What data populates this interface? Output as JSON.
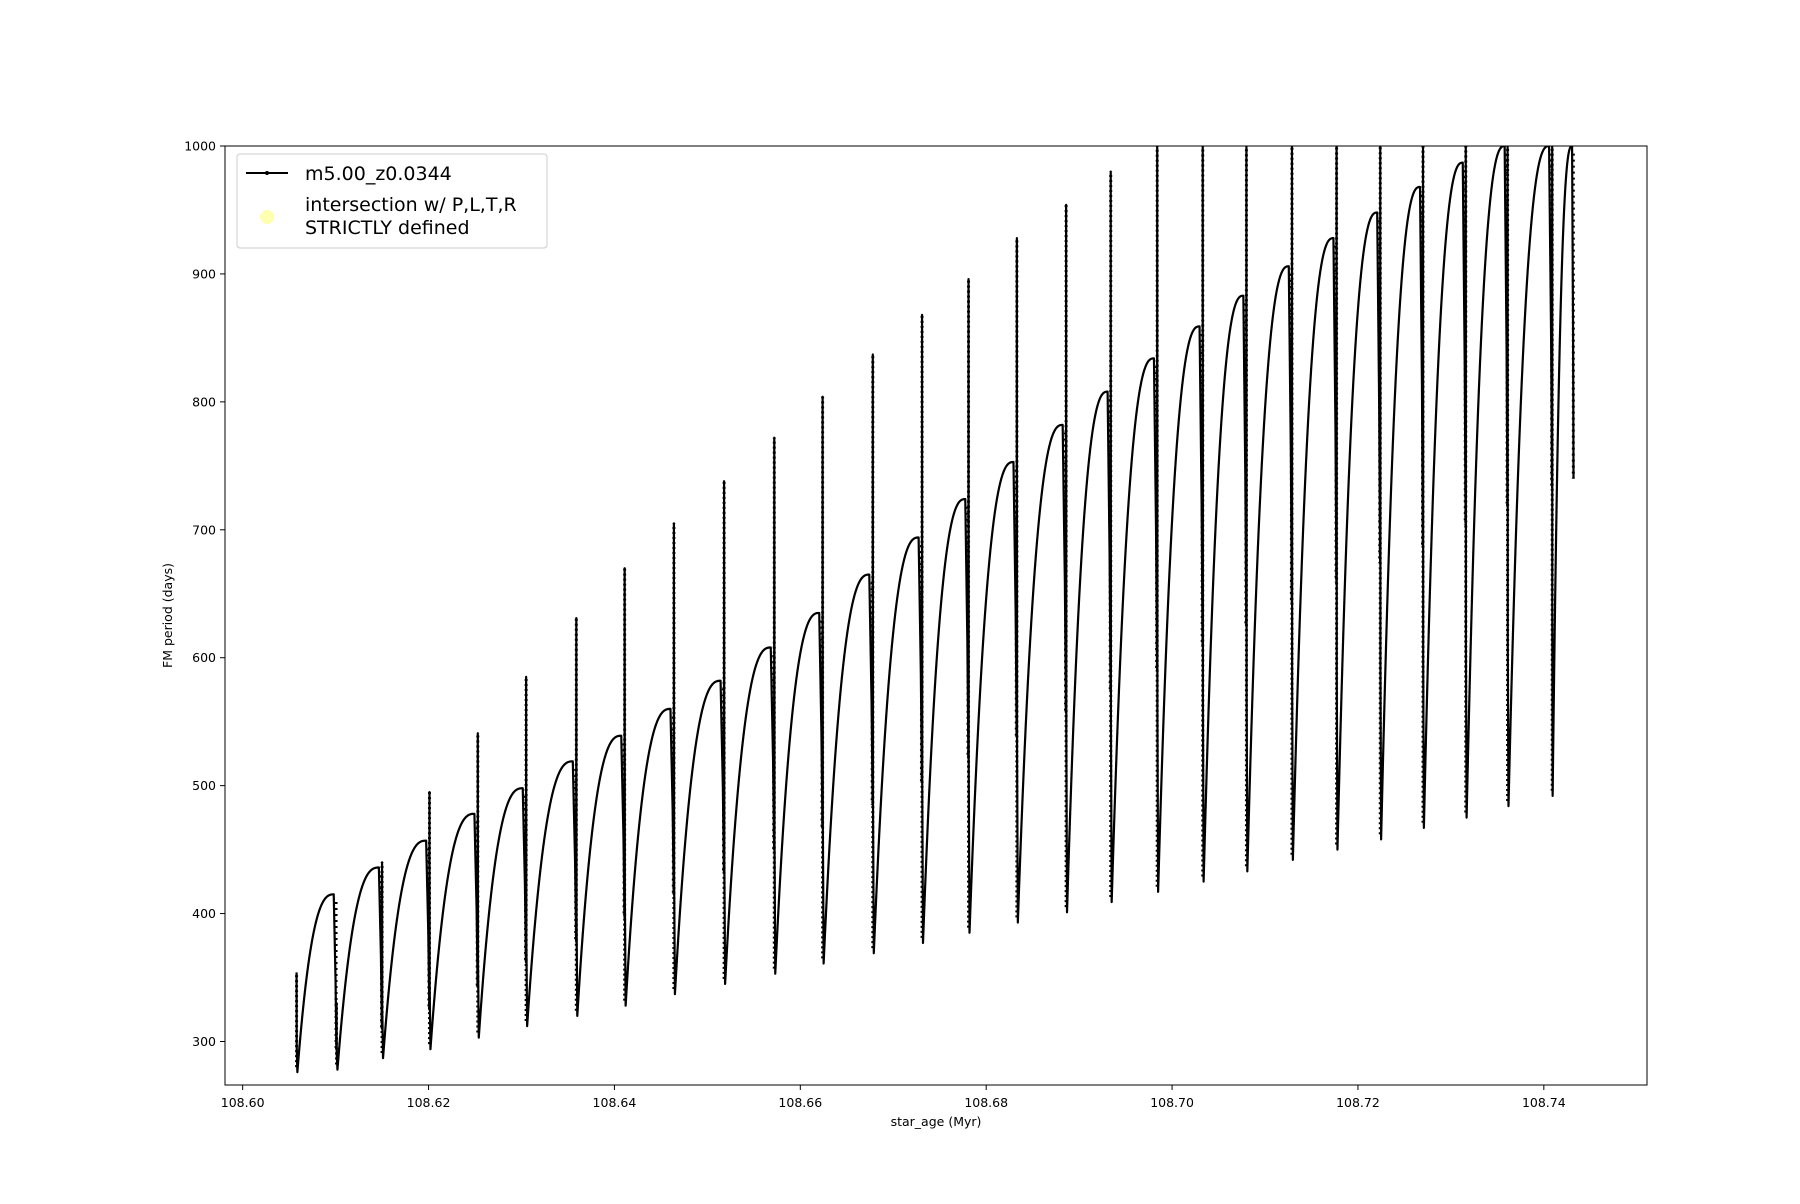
{
  "chart_data": {
    "type": "line",
    "title": "",
    "xlabel": "star_age (Myr)",
    "ylabel": "FM period (days)",
    "xlim": [
      108.5981,
      108.7511
    ],
    "ylim": [
      266,
      1000
    ],
    "x_ticks": [
      "108.60",
      "108.62",
      "108.64",
      "108.66",
      "108.68",
      "108.70",
      "108.72",
      "108.74"
    ],
    "x_tick_values": [
      108.6,
      108.62,
      108.64,
      108.66,
      108.68,
      108.7,
      108.72,
      108.74
    ],
    "y_ticks": [
      "300",
      "400",
      "500",
      "600",
      "700",
      "800",
      "900",
      "1000"
    ],
    "y_tick_values": [
      300,
      400,
      500,
      600,
      700,
      800,
      900,
      1000
    ],
    "grid": false,
    "legend_placement": "top-left",
    "legend": [
      {
        "label": "m5.00_z0.0344",
        "marker": "line-dot",
        "color": "#000000"
      },
      {
        "label_lines": [
          "intersection w/ P,L,T,R",
          "STRICTLY defined"
        ],
        "marker": "circle",
        "color": "#ffffb0"
      }
    ],
    "series": [
      {
        "name": "m5.00_z0.0344",
        "color": "#000000",
        "cycles": [
          {
            "start": 108.6058,
            "end": 108.6101,
            "min": 276,
            "peak": 415,
            "spike": 354,
            "drop": 295
          },
          {
            "start": 108.6101,
            "end": 108.615,
            "min": 278,
            "peak": 436,
            "spike": 330,
            "drop": 310
          },
          {
            "start": 108.615,
            "end": 108.6201,
            "min": 287,
            "peak": 457,
            "spike": 440,
            "drop": 325
          },
          {
            "start": 108.6201,
            "end": 108.6253,
            "min": 294,
            "peak": 478,
            "spike": 495,
            "drop": 343
          },
          {
            "start": 108.6253,
            "end": 108.6305,
            "min": 303,
            "peak": 498,
            "spike": 541,
            "drop": 362
          },
          {
            "start": 108.6305,
            "end": 108.6359,
            "min": 312,
            "peak": 519,
            "spike": 585,
            "drop": 378
          },
          {
            "start": 108.6359,
            "end": 108.6411,
            "min": 320,
            "peak": 539,
            "spike": 631,
            "drop": 397
          },
          {
            "start": 108.6411,
            "end": 108.6464,
            "min": 328,
            "peak": 560,
            "spike": 670,
            "drop": 415
          },
          {
            "start": 108.6464,
            "end": 108.6518,
            "min": 337,
            "peak": 582,
            "spike": 705,
            "drop": 432
          },
          {
            "start": 108.6518,
            "end": 108.6572,
            "min": 345,
            "peak": 608,
            "spike": 738,
            "drop": 450
          },
          {
            "start": 108.6572,
            "end": 108.6624,
            "min": 353,
            "peak": 635,
            "spike": 772,
            "drop": 467
          },
          {
            "start": 108.6624,
            "end": 108.6678,
            "min": 361,
            "peak": 665,
            "spike": 804,
            "drop": 485
          },
          {
            "start": 108.6678,
            "end": 108.6731,
            "min": 369,
            "peak": 694,
            "spike": 837,
            "drop": 503
          },
          {
            "start": 108.6731,
            "end": 108.6781,
            "min": 377,
            "peak": 724,
            "spike": 868,
            "drop": 521
          },
          {
            "start": 108.6781,
            "end": 108.6833,
            "min": 385,
            "peak": 753,
            "spike": 896,
            "drop": 539
          },
          {
            "start": 108.6833,
            "end": 108.6886,
            "min": 393,
            "peak": 782,
            "spike": 928,
            "drop": 557
          },
          {
            "start": 108.6886,
            "end": 108.6934,
            "min": 401,
            "peak": 808,
            "spike": 954,
            "drop": 574
          },
          {
            "start": 108.6934,
            "end": 108.6984,
            "min": 409,
            "peak": 834,
            "spike": 980,
            "drop": 591
          },
          {
            "start": 108.6984,
            "end": 108.7033,
            "min": 417,
            "peak": 859,
            "spike": 1000,
            "drop": 609
          },
          {
            "start": 108.7033,
            "end": 108.708,
            "min": 425,
            "peak": 883,
            "spike": 1000,
            "drop": 626
          },
          {
            "start": 108.708,
            "end": 108.7129,
            "min": 433,
            "peak": 906,
            "spike": 1000,
            "drop": 642
          },
          {
            "start": 108.7129,
            "end": 108.7177,
            "min": 442,
            "peak": 928,
            "spike": 1000,
            "drop": 659
          },
          {
            "start": 108.7177,
            "end": 108.7224,
            "min": 450,
            "peak": 948,
            "spike": 1000,
            "drop": 674
          },
          {
            "start": 108.7224,
            "end": 108.727,
            "min": 458,
            "peak": 968,
            "spike": 1000,
            "drop": 688
          },
          {
            "start": 108.727,
            "end": 108.7316,
            "min": 467,
            "peak": 987,
            "spike": 1000,
            "drop": 704
          },
          {
            "start": 108.7316,
            "end": 108.7361,
            "min": 475,
            "peak": 1000,
            "spike": 1000,
            "drop": 718
          },
          {
            "start": 108.7361,
            "end": 108.7409,
            "min": 484,
            "peak": 1000,
            "spike": 1000,
            "drop": 733
          },
          {
            "start": 108.7409,
            "end": 108.7432,
            "min": 492,
            "peak": 1000,
            "spike": 1000,
            "drop": 740
          }
        ]
      }
    ]
  }
}
